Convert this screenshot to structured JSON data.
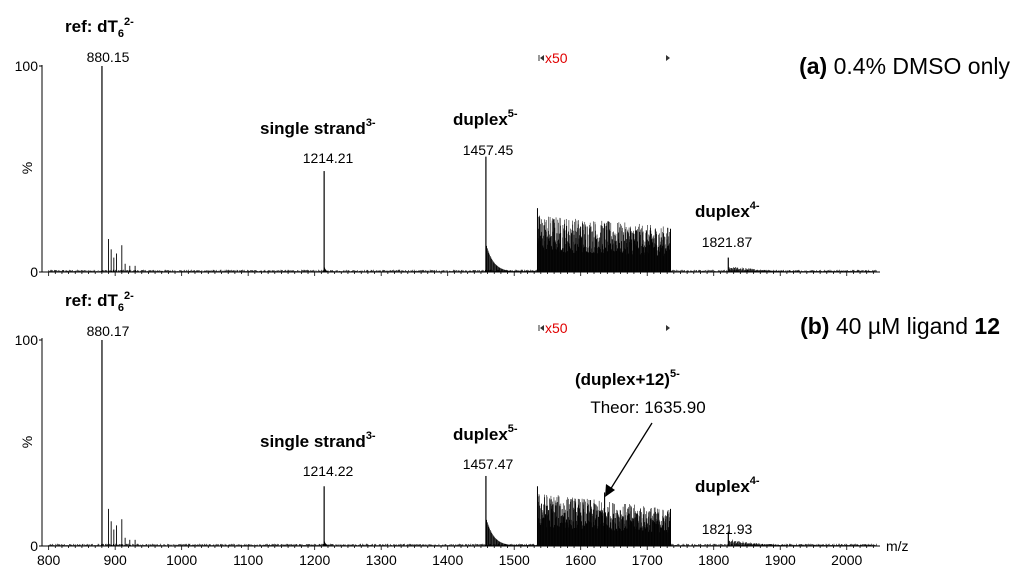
{
  "chart_data": [
    {
      "type": "line",
      "panel": "a",
      "title_label": "(a)",
      "title_text": "0.4% DMSO only",
      "xlim": [
        790,
        2050
      ],
      "ylim": [
        0,
        100
      ],
      "y_ticks": [
        "0",
        "%",
        "100"
      ],
      "zoom_label": "x50",
      "zoom_range": [
        1535,
        1735
      ],
      "peaks": [
        {
          "x": 880.15,
          "y": 100,
          "mz": "880.15",
          "annotation": "ref: dT",
          "sub": "6",
          "sup": "2-"
        },
        {
          "x": 1214.21,
          "y": 49,
          "mz": "1214.21",
          "annotation": "single strand",
          "sup": "3-"
        },
        {
          "x": 1457.45,
          "y": 56,
          "mz": "1457.45",
          "annotation": "duplex",
          "sup": "5-"
        },
        {
          "x": 1821.87,
          "y": 7,
          "mz": "1821.87",
          "annotation": "duplex",
          "sup": "4-"
        }
      ]
    },
    {
      "type": "line",
      "panel": "b",
      "title_label": "(b)",
      "title_text_a": "40 µM ligand",
      "title_text_b": "12",
      "xlim": [
        790,
        2050
      ],
      "ylim": [
        0,
        100
      ],
      "y_ticks": [
        "0",
        "%",
        "100"
      ],
      "zoom_label": "x50",
      "zoom_range": [
        1535,
        1735
      ],
      "x_ticks": [
        "800",
        "900",
        "1000",
        "1100",
        "1200",
        "1300",
        "1400",
        "1500",
        "1600",
        "1700",
        "1800",
        "1900",
        "2000"
      ],
      "x_unit": "m/z",
      "peaks": [
        {
          "x": 880.17,
          "y": 100,
          "mz": "880.17",
          "annotation": "ref: dT",
          "sub": "6",
          "sup": "2-"
        },
        {
          "x": 1214.22,
          "y": 29,
          "mz": "1214.22",
          "annotation": "single strand",
          "sup": "3-"
        },
        {
          "x": 1457.47,
          "y": 34,
          "mz": "1457.47",
          "annotation": "duplex",
          "sup": "5-"
        },
        {
          "x": 1821.93,
          "y": 7,
          "mz": "1821.93",
          "annotation": "duplex",
          "sup": "4-"
        }
      ],
      "complex_annotation": {
        "label": "(duplex+12)",
        "sup": "5-",
        "theor": "Theor: 1635.90",
        "x": 1635.9
      }
    }
  ]
}
